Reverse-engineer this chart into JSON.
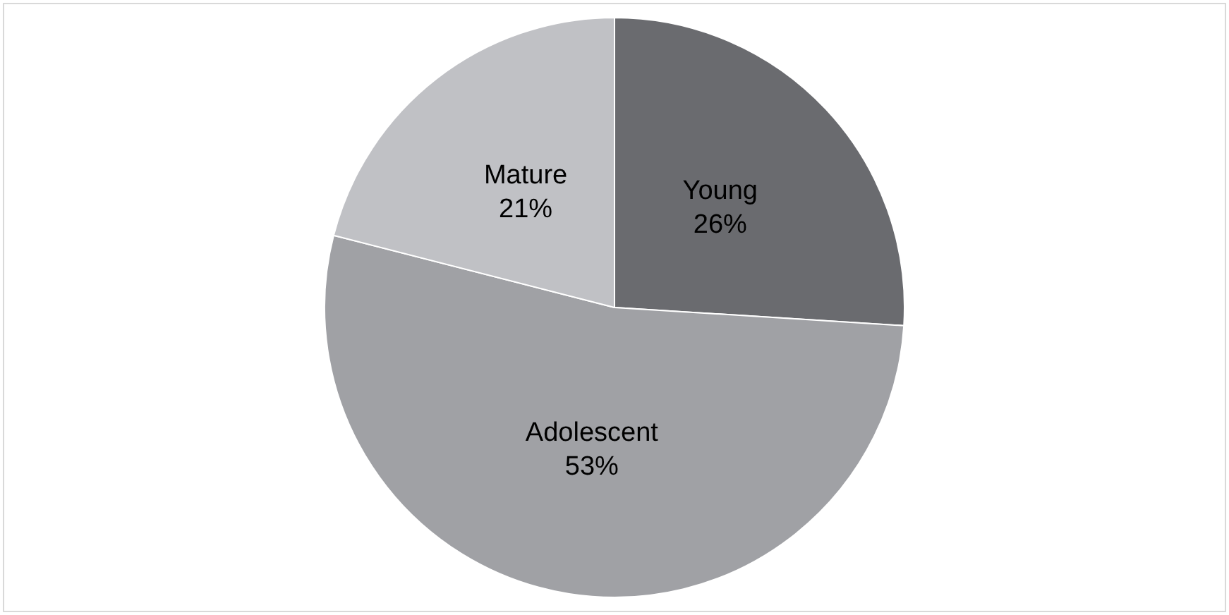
{
  "chart_data": {
    "type": "pie",
    "categories": [
      "Young",
      "Adolescent",
      "Mature"
    ],
    "values": [
      26,
      53,
      21
    ],
    "colors": [
      "#6a6b6f",
      "#a0a1a5",
      "#c0c1c5"
    ],
    "value_labels": [
      "26%",
      "53%",
      "21%"
    ],
    "legend": false
  }
}
